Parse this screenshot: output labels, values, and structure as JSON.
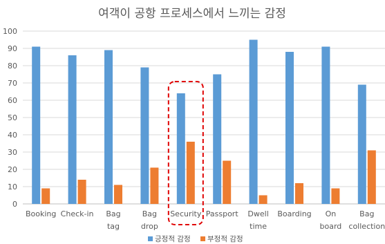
{
  "chart_data": {
    "type": "bar",
    "title": "여객이 공항 프로세스에서 느끼는 감정",
    "xlabel": "",
    "ylabel": "",
    "ylim": [
      0,
      100
    ],
    "yticks": [
      0,
      10,
      20,
      30,
      40,
      50,
      60,
      70,
      80,
      90,
      100
    ],
    "grid": true,
    "legend_position": "bottom",
    "categories": [
      [
        "Booking"
      ],
      [
        "Check-in"
      ],
      [
        "Bag",
        "tag"
      ],
      [
        "Bag",
        "drop"
      ],
      [
        "Security"
      ],
      [
        "Passport"
      ],
      [
        "Dwell",
        "time"
      ],
      [
        "Boarding"
      ],
      [
        "On",
        "board"
      ],
      [
        "Bag",
        "collection"
      ]
    ],
    "series": [
      {
        "name": "긍정적 감정",
        "color": "#5B9BD5",
        "values": [
          91,
          86,
          89,
          79,
          64,
          75,
          95,
          88,
          91,
          69
        ]
      },
      {
        "name": "부정적 감정",
        "color": "#ED7D31",
        "values": [
          9,
          14,
          11,
          21,
          36,
          25,
          5,
          12,
          9,
          31
        ]
      }
    ],
    "annotation": {
      "type": "dashed-rounded-box",
      "category_index": 4,
      "color": "#E00000"
    }
  }
}
